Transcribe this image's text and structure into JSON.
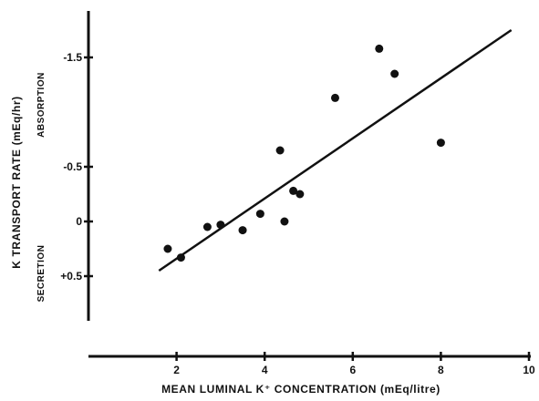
{
  "chart_data": {
    "type": "scatter",
    "title": "",
    "xlabel": "MEAN LUMINAL K⁺ CONCENTRATION (mEq/litre)",
    "ylabel": "K TRANSPORT RATE (mEq/hr)",
    "xlim": [
      0,
      10
    ],
    "ylim": [
      0.9,
      -1.9
    ],
    "y_axis_inverted": true,
    "xticks": [
      {
        "value": 2,
        "label": "2"
      },
      {
        "value": 4,
        "label": "4"
      },
      {
        "value": 6,
        "label": "6"
      },
      {
        "value": 8,
        "label": "8"
      },
      {
        "value": 10,
        "label": "10"
      }
    ],
    "yticks": [
      {
        "value": -1.5,
        "label": "-1.5"
      },
      {
        "value": -0.5,
        "label": "-0.5"
      },
      {
        "value": 0,
        "label": "0"
      },
      {
        "value": 0.5,
        "label": "+0.5"
      }
    ],
    "region_labels": {
      "upper": "ABSORPTION",
      "lower": "SECRETION"
    },
    "grid": false,
    "legend": "none",
    "points": [
      {
        "x": 1.8,
        "y": 0.25
      },
      {
        "x": 2.1,
        "y": 0.33
      },
      {
        "x": 2.7,
        "y": 0.05
      },
      {
        "x": 3.0,
        "y": 0.03
      },
      {
        "x": 3.5,
        "y": 0.08
      },
      {
        "x": 3.9,
        "y": -0.07
      },
      {
        "x": 4.35,
        "y": -0.65
      },
      {
        "x": 4.45,
        "y": 0.0
      },
      {
        "x": 4.65,
        "y": -0.28
      },
      {
        "x": 4.8,
        "y": -0.25
      },
      {
        "x": 5.6,
        "y": -1.13
      },
      {
        "x": 6.6,
        "y": -1.58
      },
      {
        "x": 6.95,
        "y": -1.35
      },
      {
        "x": 8.0,
        "y": -0.72
      }
    ],
    "fit_line": {
      "x": [
        1.6,
        9.6
      ],
      "y": [
        0.45,
        -1.75
      ]
    }
  }
}
